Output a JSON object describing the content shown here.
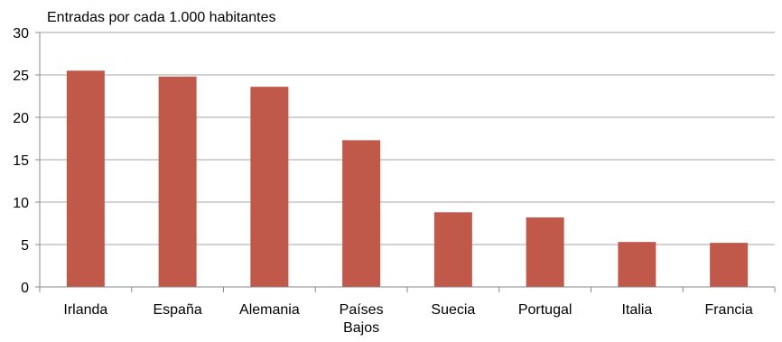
{
  "chart_data": {
    "type": "bar",
    "unit_label": "Entradas por cada 1.000 habitantes",
    "categories": [
      "Irlanda",
      "España",
      "Alemania",
      "Países Bajos",
      "Suecia",
      "Portugal",
      "Italia",
      "Francia"
    ],
    "values": [
      25.5,
      24.8,
      23.6,
      17.3,
      8.8,
      8.2,
      5.3,
      5.2
    ],
    "ylim": [
      0,
      30
    ],
    "yticks": [
      0,
      5,
      10,
      15,
      20,
      25,
      30
    ],
    "grid": true,
    "legend": "none",
    "colors": {
      "bar": "#c0594a",
      "grid": "#a6a6a6",
      "axis": "#888888"
    }
  }
}
